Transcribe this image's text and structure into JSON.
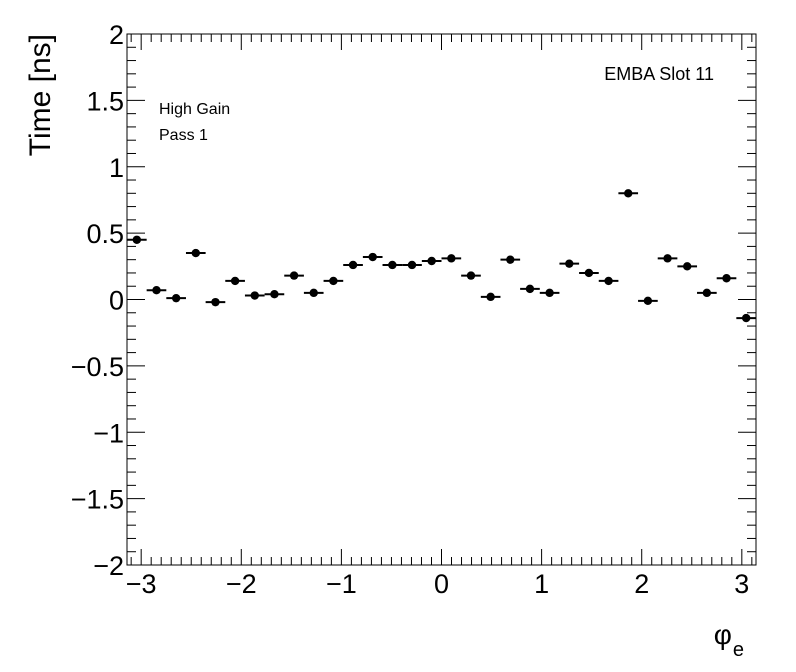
{
  "chart_data": {
    "type": "scatter",
    "title": "",
    "annotation_main": "EMBA Slot 11",
    "annotation_lines": [
      "High Gain",
      "Pass 1"
    ],
    "ylabel": "Time [ns]",
    "xlabel_base": "φ",
    "xlabel_sub": "e",
    "xlim": [
      -3.1416,
      3.1416
    ],
    "ylim": [
      -2,
      2
    ],
    "grid": false,
    "xticks": [
      {
        "v": -3,
        "label": "−3"
      },
      {
        "v": -2,
        "label": "−2"
      },
      {
        "v": -1,
        "label": "−1"
      },
      {
        "v": 0,
        "label": "0"
      },
      {
        "v": 1,
        "label": "1"
      },
      {
        "v": 2,
        "label": "2"
      },
      {
        "v": 3,
        "label": "3"
      }
    ],
    "yticks": [
      {
        "v": -2,
        "label": "−2"
      },
      {
        "v": -1.5,
        "label": "−1.5"
      },
      {
        "v": -1,
        "label": "−1"
      },
      {
        "v": -0.5,
        "label": "−0.5"
      },
      {
        "v": 0,
        "label": "0"
      },
      {
        "v": 0.5,
        "label": "0.5"
      },
      {
        "v": 1,
        "label": "1"
      },
      {
        "v": 1.5,
        "label": "1.5"
      },
      {
        "v": 2,
        "label": "2"
      }
    ],
    "bin_width": 0.19635,
    "x": [
      -3.0434,
      -2.8471,
      -2.6507,
      -2.4544,
      -2.258,
      -2.0617,
      -1.8653,
      -1.669,
      -1.4726,
      -1.2763,
      -1.0799,
      -0.8836,
      -0.6872,
      -0.4909,
      -0.2945,
      -0.0982,
      0.0982,
      0.2945,
      0.4909,
      0.6872,
      0.8836,
      1.0799,
      1.2763,
      1.4726,
      1.669,
      1.8653,
      2.0617,
      2.258,
      2.4544,
      2.6507,
      2.8471,
      3.0434
    ],
    "y": [
      0.45,
      0.07,
      0.01,
      0.35,
      -0.02,
      0.14,
      0.03,
      0.04,
      0.18,
      0.05,
      0.14,
      0.26,
      0.32,
      0.26,
      0.26,
      0.29,
      0.31,
      0.18,
      0.02,
      0.3,
      0.08,
      0.05,
      0.27,
      0.2,
      0.14,
      0.8,
      -0.01,
      0.31,
      0.25,
      0.05,
      0.16,
      -0.14
    ]
  }
}
